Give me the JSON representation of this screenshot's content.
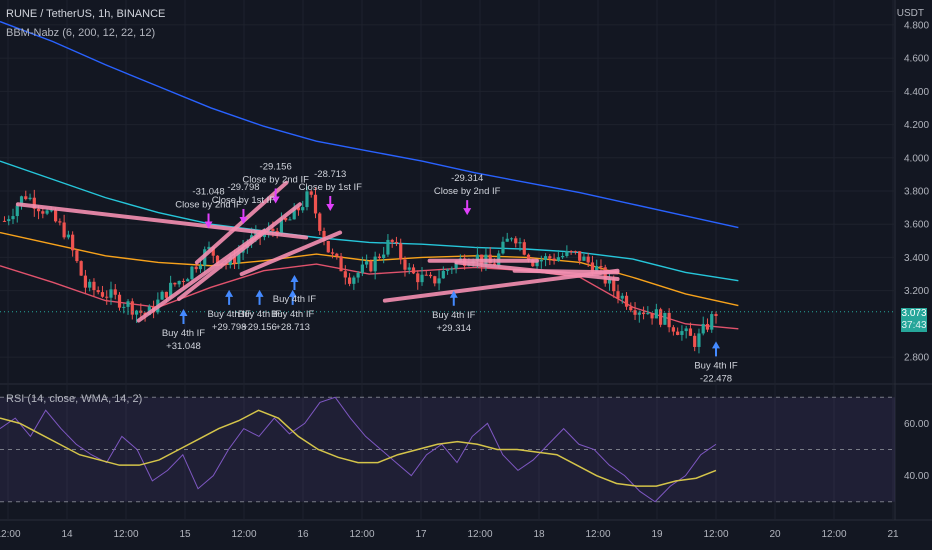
{
  "header": {
    "title": "RUNE / TetherUS, 1h, BINANCE",
    "indicator": "BBM-Nabz (6, 200, 12, 22, 12)",
    "rsi_label": "RSI (14, close, WMA, 14, 2)"
  },
  "axis": {
    "unit": "USDT"
  },
  "price_badge": {
    "price": "3.073",
    "countdown": "37:43"
  },
  "colors": {
    "background": "#131722",
    "grid": "#1e222d",
    "up": "#26a69a",
    "down": "#ef5350",
    "ma200": "#2962ff",
    "ma_cyan": "#26c6da",
    "ma_orange": "#f7a21b",
    "ma_red": "#e0526c",
    "trendline": "#f48fb1",
    "close_arrow": "#e040fb",
    "buy_arrow": "#448aff",
    "rsi": "#7e57c2",
    "rsi_ma": "#d4c44a"
  },
  "chart_data": [
    {
      "type": "candlestick",
      "title": "RUNE / TetherUS, 1h, BINANCE",
      "ylim": [
        2.65,
        4.95
      ],
      "y_ticks": [
        "4.800",
        "4.600",
        "4.400",
        "4.200",
        "4.000",
        "3.800",
        "3.600",
        "3.400",
        "3.200",
        "2.800"
      ],
      "x_ticks": [
        "12:00",
        "14",
        "12:00",
        "15",
        "12:00",
        "16",
        "12:00",
        "17",
        "12:00",
        "18",
        "12:00",
        "19",
        "12:00",
        "20",
        "12:00",
        "21"
      ],
      "last_price": 3.073,
      "ma_lines": [
        {
          "key": "ma200",
          "values": [
            4.82,
            4.7,
            4.56,
            4.43,
            4.3,
            4.19,
            4.1,
            4.04,
            3.98,
            3.91,
            3.85,
            3.79,
            3.72,
            3.65,
            3.58
          ]
        },
        {
          "key": "ma_cyan",
          "values": [
            3.98,
            3.87,
            3.76,
            3.67,
            3.6,
            3.56,
            3.52,
            3.49,
            3.48,
            3.46,
            3.45,
            3.43,
            3.39,
            3.31,
            3.26
          ]
        },
        {
          "key": "ma_orange",
          "values": [
            3.55,
            3.48,
            3.41,
            3.37,
            3.35,
            3.38,
            3.42,
            3.38,
            3.4,
            3.41,
            3.4,
            3.37,
            3.28,
            3.18,
            3.11
          ]
        },
        {
          "key": "ma_red",
          "values": [
            3.35,
            3.25,
            3.14,
            3.1,
            3.22,
            3.32,
            3.36,
            3.3,
            3.32,
            3.34,
            3.32,
            3.28,
            3.1,
            3.0,
            2.97
          ]
        }
      ],
      "anchors": [
        3.62,
        3.78,
        3.68,
        3.55,
        3.22,
        3.18,
        3.12,
        3.05,
        3.2,
        3.3,
        3.45,
        3.35,
        3.5,
        3.55,
        3.62,
        3.78,
        3.42,
        3.28,
        3.35,
        3.5,
        3.3,
        3.25,
        3.35,
        3.42,
        3.35,
        3.55,
        3.38,
        3.4,
        3.42,
        3.35,
        3.2,
        3.1,
        3.06,
        2.98,
        2.89,
        3.07
      ],
      "trendlines": [
        {
          "from": [
            0.02,
            3.72
          ],
          "to": [
            0.342,
            3.52
          ]
        },
        {
          "from": [
            0.155,
            3.02
          ],
          "to": [
            0.295,
            3.56
          ]
        },
        {
          "from": [
            0.2,
            3.15
          ],
          "to": [
            0.335,
            3.72
          ]
        },
        {
          "from": [
            0.22,
            3.37
          ],
          "to": [
            0.32,
            3.85
          ]
        },
        {
          "from": [
            0.27,
            3.3
          ],
          "to": [
            0.38,
            3.55
          ]
        },
        {
          "from": [
            0.43,
            3.14
          ],
          "to": [
            0.69,
            3.32
          ]
        },
        {
          "from": [
            0.48,
            3.38
          ],
          "to": [
            0.6,
            3.38
          ]
        },
        {
          "from": [
            0.51,
            3.37
          ],
          "to": [
            0.69,
            3.27
          ]
        },
        {
          "from": [
            0.575,
            3.32
          ],
          "to": [
            0.69,
            3.31
          ]
        }
      ],
      "annotations": [
        {
          "kind": "close",
          "pos": [
            0.308,
            3.845
          ],
          "value": "-29.156",
          "text": "Close by 2nd IF"
        },
        {
          "kind": "close",
          "pos": [
            0.369,
            3.8
          ],
          "value": "-28.713",
          "text": "Close by 1st IF"
        },
        {
          "kind": "close",
          "pos": [
            0.272,
            3.722
          ],
          "value": "-29.798",
          "text": "Close by 1st IF"
        },
        {
          "kind": "close",
          "pos": [
            0.233,
            3.695
          ],
          "value": "-31.048",
          "text": "Close by 2nd IF"
        },
        {
          "kind": "close",
          "pos": [
            0.522,
            3.775
          ],
          "value": "-29.314",
          "text": "Close by 2nd IF"
        },
        {
          "kind": "buy",
          "pos": [
            0.205,
            2.975
          ],
          "text": "Buy 4th IF",
          "value": "+31.048"
        },
        {
          "kind": "buy",
          "pos": [
            0.256,
            3.09
          ],
          "text": "Buy 4th IF",
          "value": "+29.798"
        },
        {
          "kind": "buy",
          "pos": [
            0.29,
            3.09
          ],
          "text": "Buy 4th IF",
          "value": "+29.156"
        },
        {
          "kind": "buy",
          "pos": [
            0.327,
            3.09
          ],
          "text": "Buy 4th IF",
          "value": "+28.713"
        },
        {
          "kind": "buy",
          "pos": [
            0.329,
            3.18
          ],
          "text": "Buy 4th IF",
          "value": ""
        },
        {
          "kind": "buy",
          "pos": [
            0.507,
            3.085
          ],
          "text": "Buy 4th IF",
          "value": "+29.314"
        },
        {
          "kind": "buy",
          "pos": [
            0.8,
            2.78
          ],
          "text": "Buy 4th IF",
          "value": "-22.478"
        }
      ]
    },
    {
      "type": "line",
      "title": "RSI (14, close, WMA, 14, 2)",
      "ylim": [
        28,
        72
      ],
      "y_ticks": [
        "60.00",
        "40.00"
      ],
      "bands": [
        70,
        50,
        30
      ],
      "series": [
        {
          "key": "rsi",
          "values": [
            58,
            62,
            55,
            65,
            58,
            52,
            48,
            45,
            55,
            50,
            38,
            42,
            48,
            35,
            40,
            50,
            58,
            55,
            62,
            56,
            60,
            68,
            70,
            62,
            55,
            50,
            45,
            40,
            48,
            52,
            45,
            55,
            60,
            48,
            42,
            46,
            52,
            58,
            52,
            50,
            44,
            40,
            34,
            30,
            36,
            40,
            48,
            52
          ]
        },
        {
          "key": "rsi_ma",
          "values": [
            62,
            60,
            56,
            52,
            48,
            46,
            44,
            44,
            46,
            50,
            54,
            58,
            61,
            65,
            62,
            55,
            50,
            47,
            45,
            45,
            48,
            50,
            52,
            53,
            52,
            50,
            50,
            49,
            48,
            44,
            40,
            37,
            36,
            36,
            38,
            39,
            42
          ]
        }
      ]
    }
  ]
}
